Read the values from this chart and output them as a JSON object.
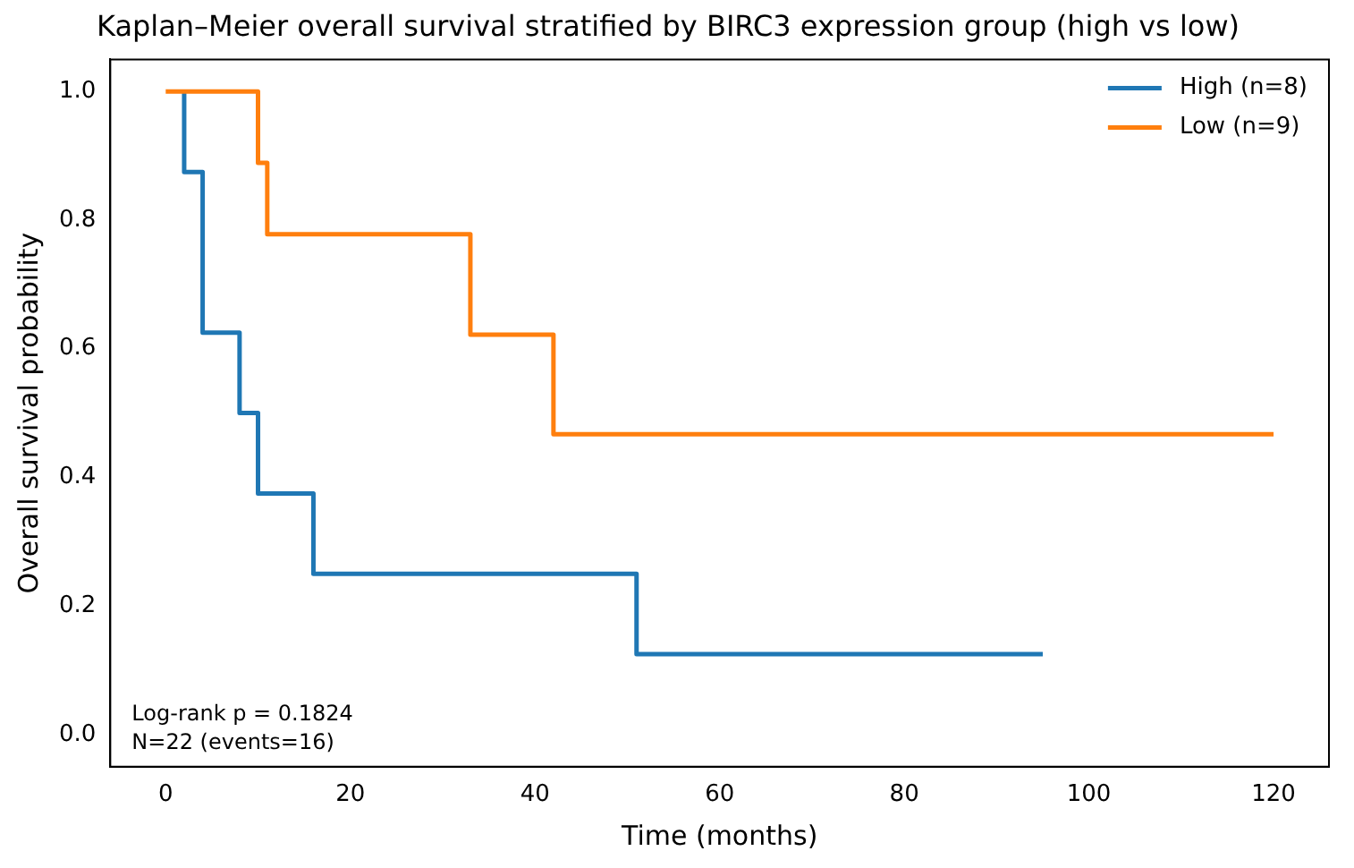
{
  "chart_data": {
    "type": "step",
    "title": "Kaplan–Meier overall survival stratified by BIRC3 expression group (high vs low)",
    "xlabel": "Time (months)",
    "ylabel": "Overall survival probability",
    "series": [
      {
        "name": "High (n=8)",
        "color": "#1f77b4",
        "x": [
          2,
          2,
          4,
          8,
          10,
          16,
          51,
          95
        ],
        "values": [
          1,
          0.875,
          0.625,
          0.5,
          0.375,
          0.25,
          0.125,
          0.125
        ]
      },
      {
        "name": "Low (n=9)",
        "color": "#ff7f0e",
        "x": [
          0,
          10,
          11,
          33,
          42,
          120
        ],
        "values": [
          1,
          0.889,
          0.778,
          0.622,
          0.467,
          0.467
        ]
      }
    ],
    "xlim": [
      -6,
      126
    ],
    "xticks": [
      0,
      20,
      40,
      60,
      80,
      100,
      120
    ],
    "ylim": [
      -0.05,
      1.05
    ],
    "yticks": [
      {
        "value": 0,
        "label": "0.0"
      },
      {
        "value": 0.2,
        "label": "0.2"
      },
      {
        "value": 0.4,
        "label": "0.4"
      },
      {
        "value": 0.6,
        "label": "0.6"
      },
      {
        "value": 0.8,
        "label": "0.8"
      },
      {
        "value": 1,
        "label": "1.0"
      }
    ],
    "legend": "top right",
    "grid": false,
    "annotations": [
      "Log-rank p = 0.1824\nN=22 (events=16)"
    ]
  }
}
